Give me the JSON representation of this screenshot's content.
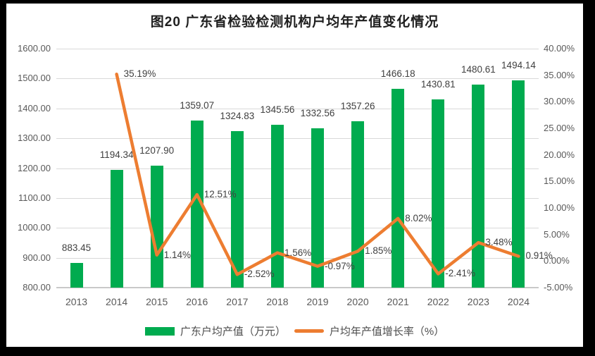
{
  "window": {
    "background": "#000000"
  },
  "panel": {
    "background": "#ffffff"
  },
  "title": "图20 广东省检验检测机构户均年产值变化情况",
  "legend": {
    "items": [
      {
        "label": "广东户均产值（万元）",
        "swatch": "bar",
        "color": "#00AB4F"
      },
      {
        "label": "户均年产值增长率（%）",
        "swatch": "line",
        "color": "#ED7D31"
      }
    ]
  },
  "colors": {
    "bar": "#00AB4F",
    "line": "#ED7D31",
    "grid": "#d9d9d9",
    "axis_line": "#c9c9c9",
    "tick_text": "#595959",
    "data_label_text": "#404040",
    "title_text": "#1f1f1f"
  },
  "chart_data": {
    "type": "combo",
    "title": "图20 广东省检验检测机构户均年产值变化情况",
    "categories": [
      "2013",
      "2014",
      "2015",
      "2016",
      "2017",
      "2018",
      "2019",
      "2020",
      "2021",
      "2022",
      "2023",
      "2024"
    ],
    "series": [
      {
        "name": "广东户均产值（万元）",
        "type": "bar",
        "axis": "left",
        "color": "#00AB4F",
        "values": [
          883.45,
          1194.34,
          1207.9,
          1359.07,
          1324.83,
          1345.56,
          1332.56,
          1357.26,
          1466.18,
          1430.81,
          1480.61,
          1494.14
        ],
        "labels": [
          "883.45",
          "1194.34",
          "1207.90",
          "1359.07",
          "1324.83",
          "1345.56",
          "1332.56",
          "1357.26",
          "1466.18",
          "1430.81",
          "1480.61",
          "1494.14"
        ]
      },
      {
        "name": "户均年产值增长率（%）",
        "type": "line",
        "axis": "right",
        "color": "#ED7D31",
        "values": [
          null,
          35.19,
          1.14,
          12.51,
          -2.52,
          1.56,
          -0.97,
          1.85,
          8.02,
          -2.41,
          3.48,
          0.91
        ],
        "labels": [
          null,
          "35.19%",
          "1.14%",
          "12.51%",
          "-2.52%",
          "1.56%",
          "-0.97%",
          "1.85%",
          "8.02%",
          "-2.41%",
          "3.48%",
          "0.91%"
        ]
      }
    ],
    "left_axis": {
      "min": 800,
      "max": 1600,
      "step": 100,
      "tick_labels": [
        "800.00",
        "900.00",
        "1000.00",
        "1100.00",
        "1200.00",
        "1300.00",
        "1400.00",
        "1500.00",
        "1600.00"
      ]
    },
    "right_axis": {
      "min": -5,
      "max": 40,
      "step": 5,
      "tick_labels": [
        "-5.00%",
        "0.00%",
        "5.00%",
        "10.00%",
        "15.00%",
        "20.00%",
        "25.00%",
        "30.00%",
        "35.00%",
        "40.00%"
      ]
    },
    "grid": true,
    "legend_position": "bottom"
  }
}
